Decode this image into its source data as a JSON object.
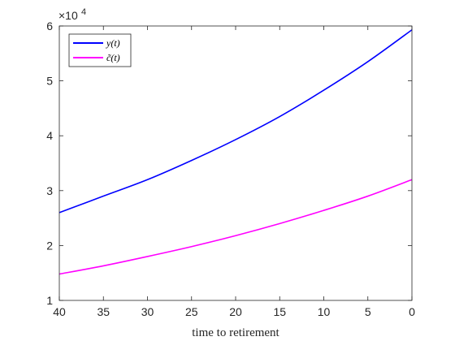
{
  "chart_data": {
    "type": "line",
    "title": "",
    "xlabel": "time to retirement",
    "ylabel": "",
    "x_reversed": true,
    "xlim": [
      0,
      40
    ],
    "ylim": [
      1,
      6
    ],
    "y_multiplier_label": "×10",
    "y_multiplier_exponent": "4",
    "xticks": [
      40,
      35,
      30,
      25,
      20,
      15,
      10,
      5,
      0
    ],
    "yticks": [
      1,
      2,
      3,
      4,
      5,
      6
    ],
    "grid": false,
    "legend_location": "top-left",
    "x": [
      40,
      35,
      30,
      25,
      20,
      15,
      10,
      5,
      0
    ],
    "series": [
      {
        "name": "y(t)",
        "color": "#0000ff",
        "values": [
          2.6,
          2.9,
          3.2,
          3.55,
          3.93,
          4.35,
          4.83,
          5.35,
          5.93
        ]
      },
      {
        "name": "c̃(t)",
        "color": "#ff00ff",
        "values": [
          1.48,
          1.63,
          1.8,
          1.98,
          2.18,
          2.4,
          2.64,
          2.9,
          3.2
        ]
      }
    ]
  }
}
